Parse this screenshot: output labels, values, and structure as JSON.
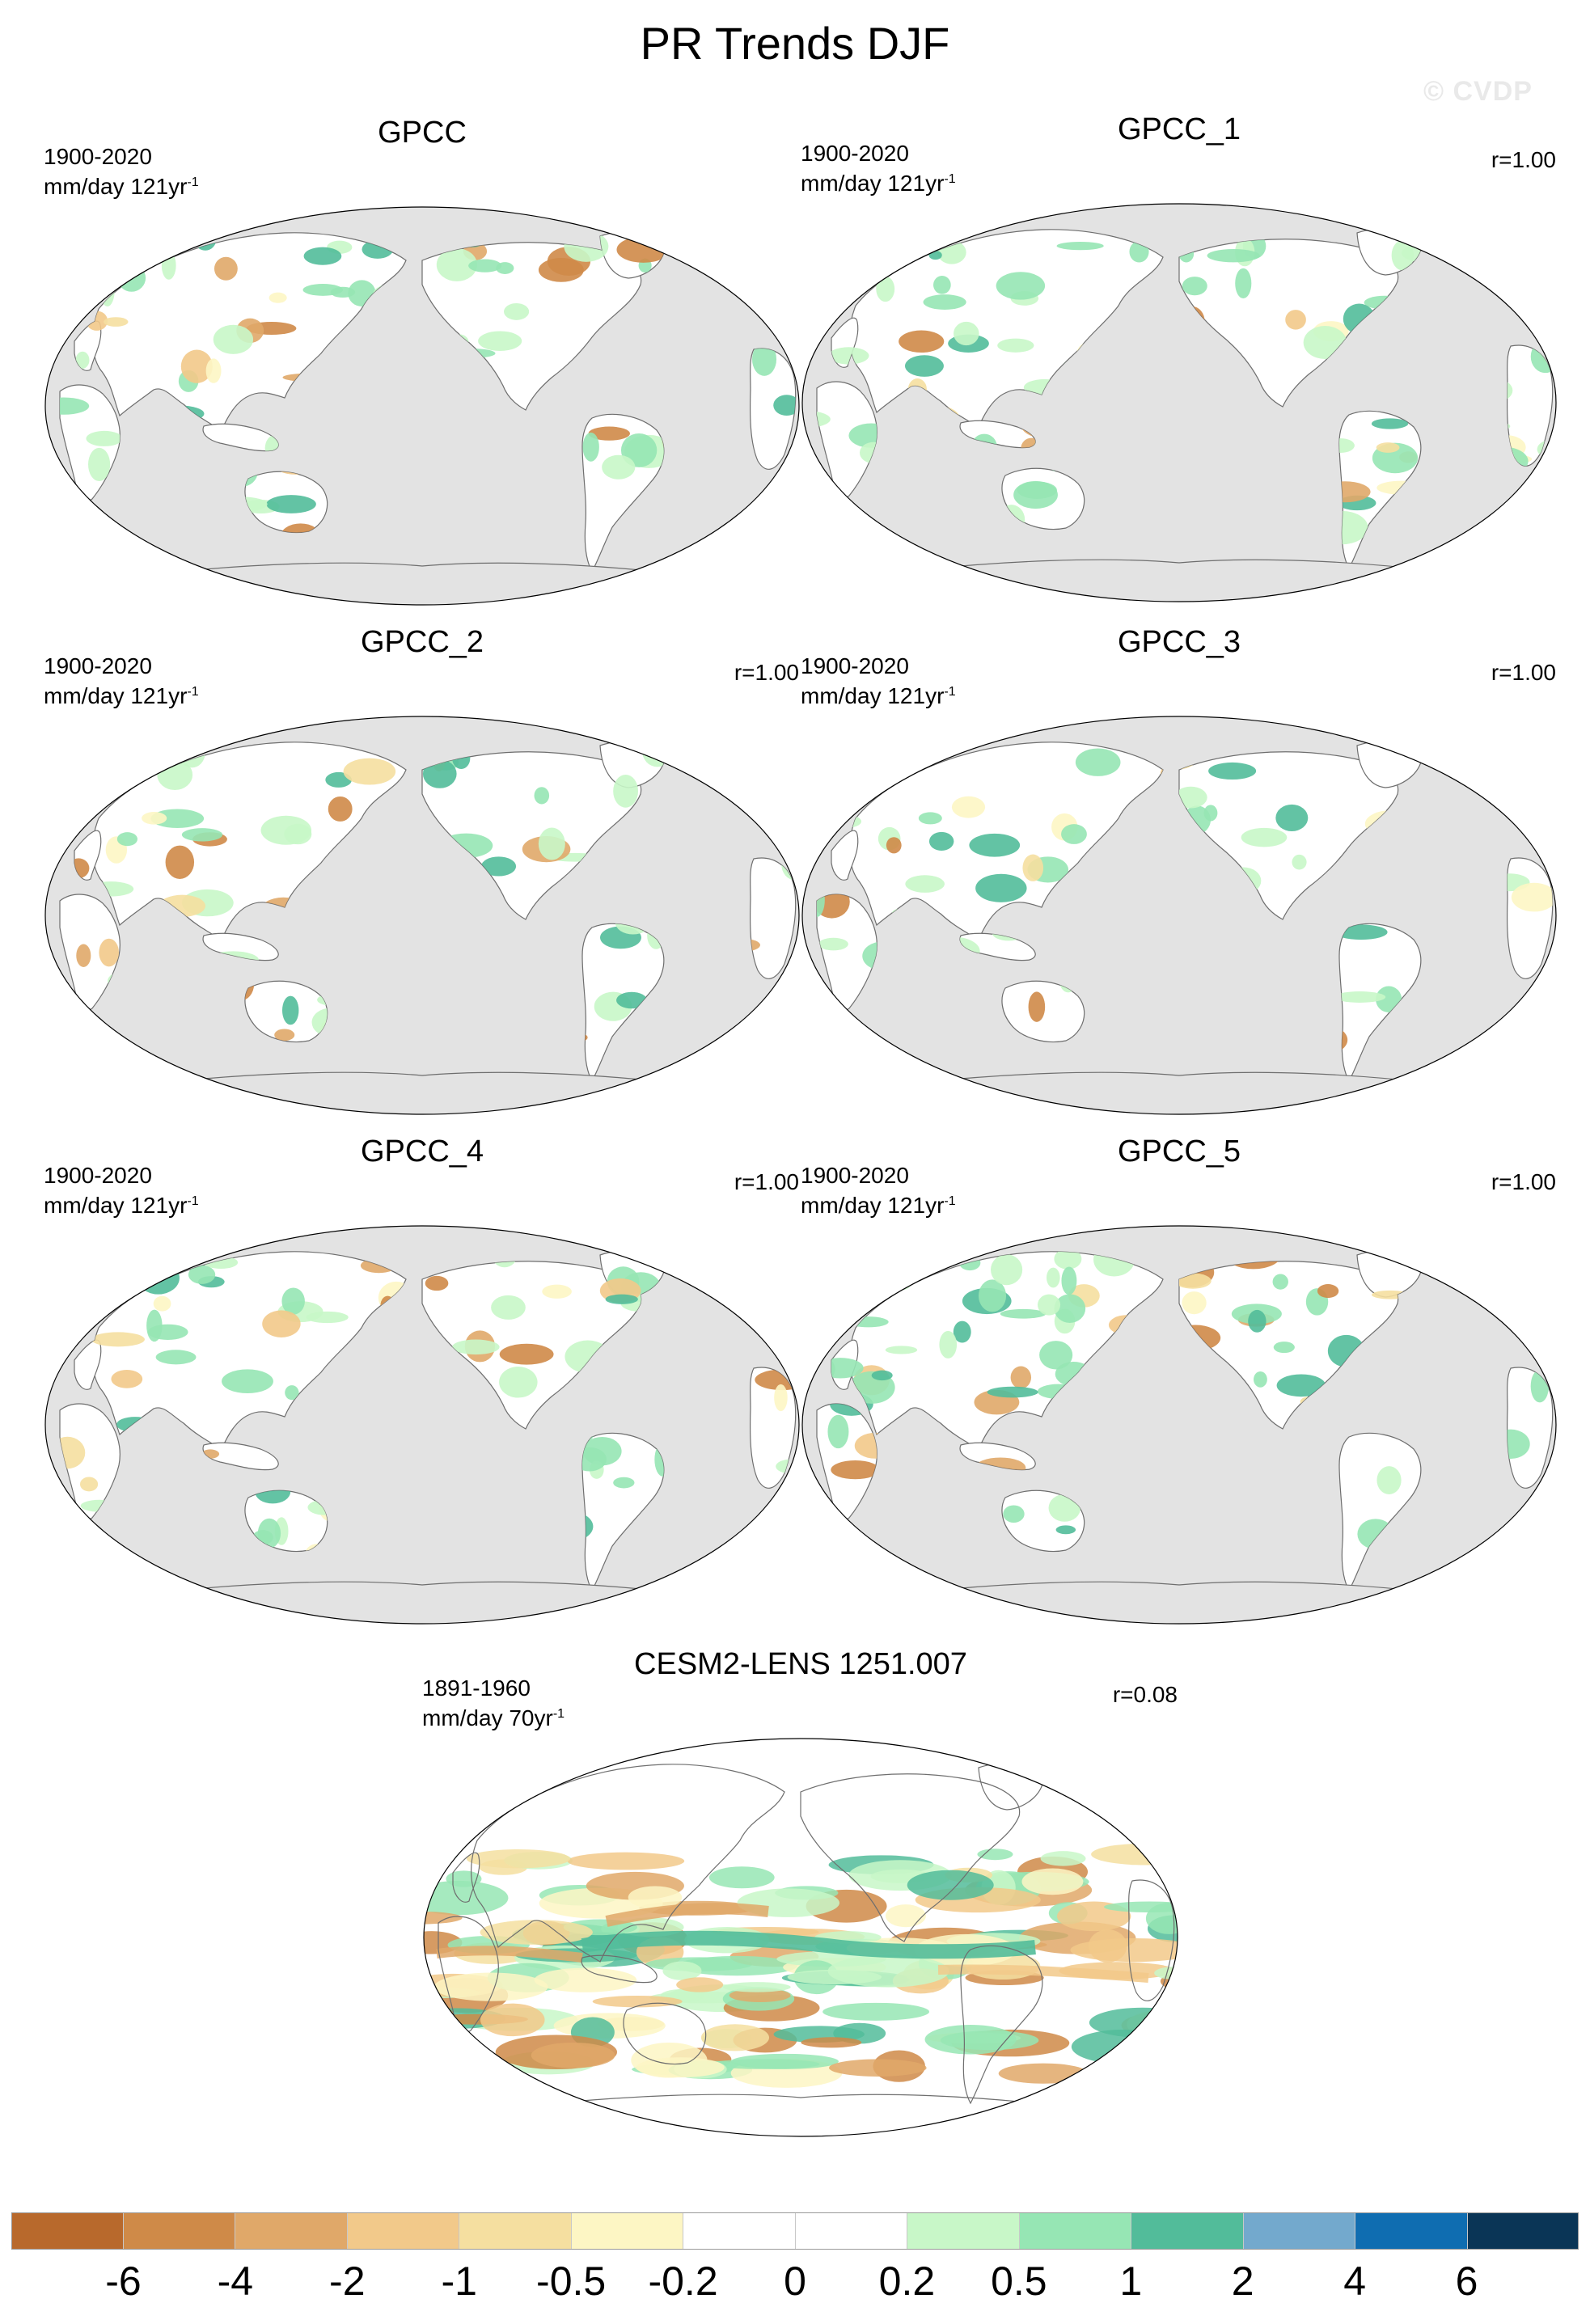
{
  "title": "PR Trends DJF",
  "watermark": "© CVDP",
  "panels": [
    {
      "title": "GPCC",
      "period": "1900-2020",
      "units_main": "mm/day 121yr",
      "units_exp": "-1",
      "corr": ""
    },
    {
      "title": "GPCC_1",
      "period": "1900-2020",
      "units_main": "mm/day 121yr",
      "units_exp": "-1",
      "corr": "r=1.00"
    },
    {
      "title": "GPCC_2",
      "period": "1900-2020",
      "units_main": "mm/day 121yr",
      "units_exp": "-1",
      "corr": "r=1.00"
    },
    {
      "title": "GPCC_3",
      "period": "1900-2020",
      "units_main": "mm/day 121yr",
      "units_exp": "-1",
      "corr": "r=1.00"
    },
    {
      "title": "GPCC_4",
      "period": "1900-2020",
      "units_main": "mm/day 121yr",
      "units_exp": "-1",
      "corr": "r=1.00"
    },
    {
      "title": "GPCC_5",
      "period": "1900-2020",
      "units_main": "mm/day 121yr",
      "units_exp": "-1",
      "corr": "r=1.00"
    },
    {
      "title": "CESM2-LENS 1251.007",
      "period": "1891-1960",
      "units_main": "mm/day 70yr",
      "units_exp": "-1",
      "corr": "r=0.08"
    }
  ],
  "colorbar": {
    "colors": [
      "#b8692c",
      "#cf8a48",
      "#e0a869",
      "#f2c98a",
      "#f5dfa0",
      "#fdf6c4",
      "#ffffff",
      "#ffffff",
      "#c8f7c8",
      "#96e6b4",
      "#52bc9a",
      "#73a9cd",
      "#0f6db1",
      "#0a3556"
    ],
    "labels": [
      "-6",
      "-4",
      "-2",
      "-1",
      "-0.5",
      "-0.2",
      "0",
      "0.2",
      "0.5",
      "1",
      "2",
      "4",
      "6"
    ]
  },
  "map_colors": {
    "ocean_masked": "#e3e3e3",
    "land_no_trend": "#ffffff",
    "coast": "#6e6e6e"
  }
}
